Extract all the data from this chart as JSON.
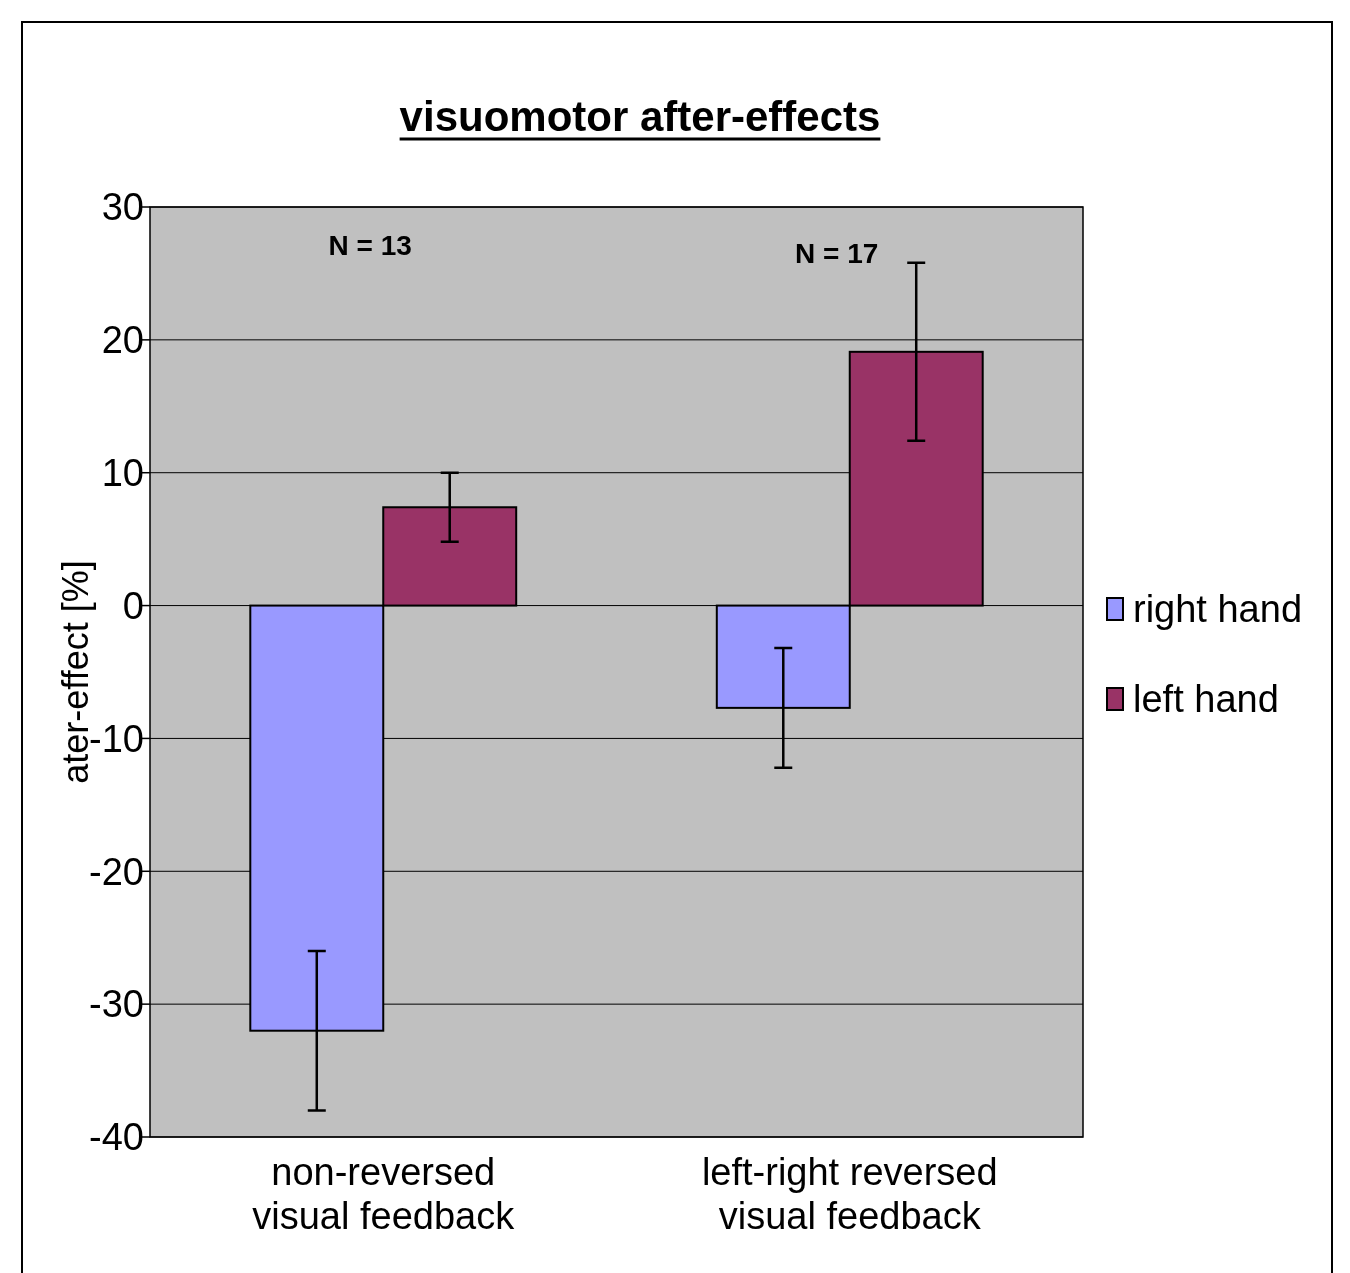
{
  "chart_data": {
    "type": "bar",
    "title": "visuomotor after-effects",
    "ylabel": "ater-effect [%]",
    "categories": [
      "non-reversed\nvisual feedback",
      "left-right reversed\nvisual feedback"
    ],
    "series": [
      {
        "name": "right hand",
        "color": "#9999ff",
        "values": [
          -32,
          -7.7
        ],
        "errors": [
          6,
          4.5
        ]
      },
      {
        "name": "left hand",
        "color": "#993366",
        "values": [
          7.4,
          19.1
        ],
        "errors": [
          2.6,
          6.7
        ]
      }
    ],
    "ylim": [
      -40,
      30
    ],
    "yticks": [
      -40,
      -30,
      -20,
      -10,
      0,
      10,
      20,
      30
    ],
    "grid": "y",
    "legend": "right",
    "annotations": [
      "N = 13",
      "N = 17"
    ]
  }
}
